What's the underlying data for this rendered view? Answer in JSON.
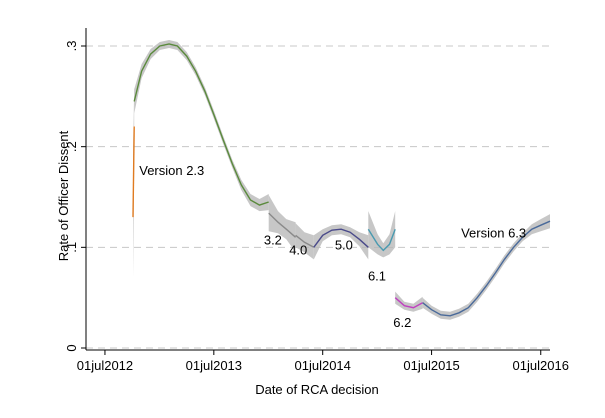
{
  "chart_data": {
    "type": "line",
    "title": "",
    "xlabel": "Date of RCA decision",
    "ylabel": "Rate of Officer Dissent",
    "ylim": [
      0,
      0.3
    ],
    "yticks": [
      {
        "value": 0,
        "label": "0"
      },
      {
        "value": 0.1,
        "label": ".1"
      },
      {
        "value": 0.2,
        "label": ".2"
      },
      {
        "value": 0.3,
        "label": ".3"
      }
    ],
    "xlim": [
      "2012-06-01",
      "2016-08-01"
    ],
    "xticks": [
      {
        "value": "2012-07-01",
        "label": "01jul2012"
      },
      {
        "value": "2013-07-01",
        "label": "01jul2013"
      },
      {
        "value": "2014-07-01",
        "label": "01jul2014"
      },
      {
        "value": "2015-07-01",
        "label": "01jul2015"
      },
      {
        "value": "2016-07-01",
        "label": "01jul2016"
      }
    ],
    "grid": "horizontal dashed",
    "legend": "none",
    "series": [
      {
        "color": "#e07b20",
        "x": [
          "2012-10-03",
          "2012-10-07"
        ],
        "y": [
          0.13,
          0.22
        ],
        "band_halfwidth": [
          0.06,
          0.04
        ]
      },
      {
        "color": "#5a8a3c",
        "x": [
          "2012-10-07",
          "2012-11-01",
          "2012-12-01",
          "2013-01-01",
          "2013-02-01",
          "2013-03-01",
          "2013-04-01",
          "2013-05-01",
          "2013-06-01",
          "2013-07-01",
          "2013-08-01",
          "2013-09-01",
          "2013-10-01",
          "2013-11-01",
          "2013-12-01",
          "2014-01-01"
        ],
        "y": [
          0.245,
          0.275,
          0.292,
          0.3,
          0.302,
          0.3,
          0.29,
          0.275,
          0.255,
          0.232,
          0.207,
          0.183,
          0.162,
          0.147,
          0.142,
          0.145
        ],
        "band_halfwidth": [
          0.012,
          0.007,
          0.005,
          0.004,
          0.004,
          0.004,
          0.004,
          0.004,
          0.004,
          0.004,
          0.004,
          0.004,
          0.005,
          0.006,
          0.006,
          0.008
        ]
      },
      {
        "color": "#8a8a8a",
        "x": [
          "2014-01-01",
          "2014-02-01",
          "2014-03-01",
          "2014-04-01"
        ],
        "y": [
          0.134,
          0.125,
          0.118,
          0.11
        ],
        "band_halfwidth": [
          0.018,
          0.011,
          0.01,
          0.015
        ]
      },
      {
        "color": "#8a8a8a",
        "x": [
          "2014-04-01",
          "2014-05-01",
          "2014-06-01"
        ],
        "y": [
          0.112,
          0.105,
          0.1
        ],
        "band_halfwidth": [
          0.012,
          0.01,
          0.012
        ]
      },
      {
        "color": "#4a4a8a",
        "x": [
          "2014-06-01",
          "2014-07-01",
          "2014-08-01",
          "2014-09-01",
          "2014-10-01",
          "2014-11-01",
          "2014-12-01"
        ],
        "y": [
          0.1,
          0.112,
          0.117,
          0.118,
          0.115,
          0.108,
          0.1
        ],
        "band_halfwidth": [
          0.012,
          0.006,
          0.005,
          0.005,
          0.005,
          0.007,
          0.012
        ]
      },
      {
        "color": "#4a9ab0",
        "x": [
          "2014-12-01",
          "2015-01-01",
          "2015-01-20",
          "2015-02-10",
          "2015-03-01"
        ],
        "y": [
          0.118,
          0.103,
          0.097,
          0.103,
          0.118
        ],
        "band_halfwidth": [
          0.018,
          0.01,
          0.007,
          0.01,
          0.018
        ]
      },
      {
        "color": "#c040c0",
        "x": [
          "2015-03-01",
          "2015-04-01",
          "2015-05-01",
          "2015-06-01"
        ],
        "y": [
          0.05,
          0.042,
          0.04,
          0.045
        ],
        "band_halfwidth": [
          0.006,
          0.004,
          0.004,
          0.006
        ]
      },
      {
        "color": "#4a6a9a",
        "x": [
          "2015-06-01",
          "2015-07-01",
          "2015-08-01",
          "2015-09-01",
          "2015-10-01",
          "2015-11-01",
          "2015-12-01",
          "2016-01-01",
          "2016-02-01",
          "2016-03-01",
          "2016-04-01",
          "2016-05-01",
          "2016-06-01",
          "2016-07-01",
          "2016-08-01"
        ],
        "y": [
          0.045,
          0.038,
          0.033,
          0.032,
          0.035,
          0.04,
          0.05,
          0.062,
          0.075,
          0.088,
          0.1,
          0.11,
          0.118,
          0.122,
          0.126
        ],
        "band_halfwidth": [
          0.005,
          0.004,
          0.004,
          0.004,
          0.004,
          0.004,
          0.004,
          0.004,
          0.004,
          0.004,
          0.004,
          0.004,
          0.005,
          0.006,
          0.007
        ]
      }
    ],
    "annotations": [
      {
        "text": "Version 2.3",
        "x": "2013-02-10",
        "y": 0.172
      },
      {
        "text": "3.2",
        "x": "2014-01-15",
        "y": 0.103
      },
      {
        "text": "4.0",
        "x": "2014-04-10",
        "y": 0.093
      },
      {
        "text": "5.0",
        "x": "2014-09-10",
        "y": 0.098
      },
      {
        "text": "6.1",
        "x": "2014-12-30",
        "y": 0.067
      },
      {
        "text": "6.2",
        "x": "2015-03-25",
        "y": 0.021
      },
      {
        "text": "Version 6.3",
        "x": "2016-01-25",
        "y": 0.11
      }
    ]
  }
}
